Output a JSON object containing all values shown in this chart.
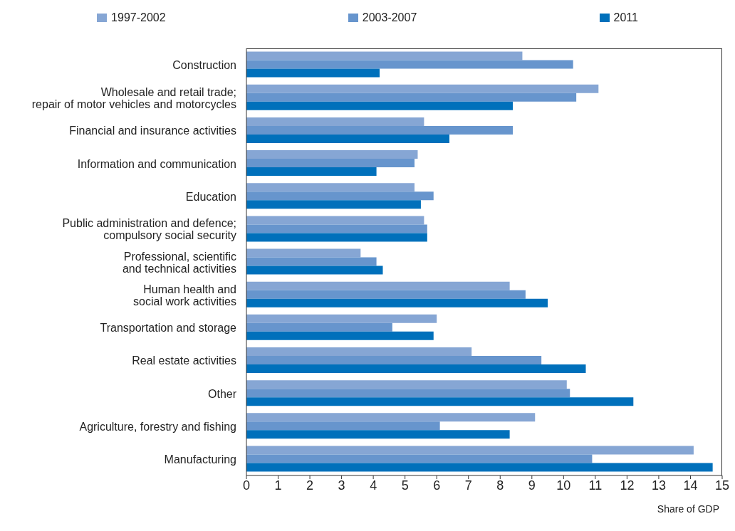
{
  "chart_data": {
    "type": "bar",
    "orientation": "horizontal",
    "xlabel": "Share of GDP",
    "legend": "top",
    "categories": [
      "Construction",
      "Wholesale and retail trade;\nrepair of motor vehicles and motorcycles",
      "Financial and insurance activities",
      "Information and communication",
      "Education",
      "Public administration and defence;\ncompulsory social security",
      "Professional, scientific\nand technical activities",
      "Human health and\nsocial work activities",
      "Transportation and storage",
      "Real estate activities",
      "Other",
      "Agriculture, forestry and fishing",
      "Manufacturing"
    ],
    "series": [
      {
        "name": "1997-2002",
        "color": "#86a6d4",
        "values": [
          8.7,
          11.1,
          5.6,
          5.4,
          5.3,
          5.6,
          3.6,
          8.3,
          6.0,
          7.1,
          10.1,
          9.1,
          14.1
        ]
      },
      {
        "name": "2003-2007",
        "color": "#6795cd",
        "values": [
          10.3,
          10.4,
          8.4,
          5.3,
          5.9,
          5.7,
          4.1,
          8.8,
          4.6,
          9.3,
          10.2,
          6.1,
          10.9
        ]
      },
      {
        "name": "2011",
        "color": "#0070bb",
        "values": [
          4.2,
          8.4,
          6.4,
          4.1,
          5.5,
          5.7,
          4.3,
          9.5,
          5.9,
          10.7,
          12.2,
          8.3,
          14.7
        ]
      }
    ],
    "xlim": [
      0,
      15
    ],
    "xticks": [
      0,
      1,
      2,
      3,
      4,
      5,
      6,
      7,
      8,
      9,
      10,
      11,
      12,
      13,
      14,
      15
    ]
  }
}
